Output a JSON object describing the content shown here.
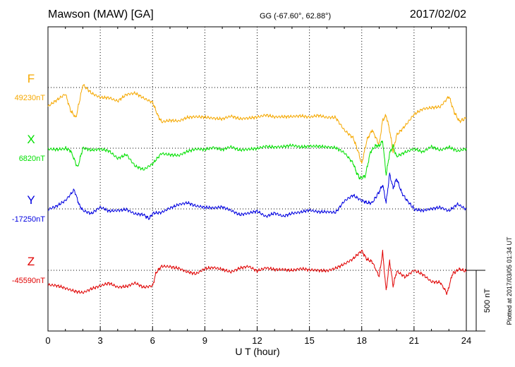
{
  "chart_data": {
    "type": "line",
    "title": "Mawson (MAW)  [GA]",
    "coords": "GG (-67.60°,  62.88°)",
    "date": "2017/02/02",
    "xlabel": "U T (hour)",
    "xlim": [
      0,
      24
    ],
    "xticks": [
      "0",
      "3",
      "6",
      "9",
      "12",
      "15",
      "18",
      "21",
      "24"
    ],
    "grid": true,
    "scale_bar_label": "500 nT",
    "plotted_note": "Plotted at 2017/03/05 01:34 UT",
    "series": [
      {
        "name": "F",
        "baseline_label": "49230nT",
        "color": "#f5a800",
        "points": [
          [
            0,
            49075
          ],
          [
            0.5,
            49130
          ],
          [
            1,
            49180
          ],
          [
            1.3,
            49040
          ],
          [
            1.6,
            48980
          ],
          [
            2,
            49250
          ],
          [
            2.5,
            49180
          ],
          [
            3,
            49150
          ],
          [
            3.5,
            49150
          ],
          [
            4,
            49120
          ],
          [
            4.5,
            49170
          ],
          [
            5,
            49180
          ],
          [
            5.5,
            49140
          ],
          [
            6,
            49110
          ],
          [
            6.3,
            49000
          ],
          [
            6.5,
            48950
          ],
          [
            7,
            48960
          ],
          [
            7.5,
            48950
          ],
          [
            8,
            48980
          ],
          [
            8.5,
            48990
          ],
          [
            9,
            48990
          ],
          [
            9.5,
            48980
          ],
          [
            10,
            48970
          ],
          [
            10.5,
            48990
          ],
          [
            11,
            48970
          ],
          [
            11.5,
            48980
          ],
          [
            12,
            48990
          ],
          [
            12.5,
            49005
          ],
          [
            13,
            48985
          ],
          [
            13.5,
            48985
          ],
          [
            14,
            48990
          ],
          [
            14.5,
            49000
          ],
          [
            15,
            48990
          ],
          [
            15.5,
            49000
          ],
          [
            16,
            48980
          ],
          [
            16.5,
            48980
          ],
          [
            17,
            48880
          ],
          [
            17.5,
            48820
          ],
          [
            17.8,
            48700
          ],
          [
            18,
            48600
          ],
          [
            18.3,
            48800
          ],
          [
            18.6,
            48880
          ],
          [
            19,
            48760
          ],
          [
            19.2,
            48960
          ],
          [
            19.4,
            49000
          ],
          [
            19.6,
            48880
          ],
          [
            19.8,
            48700
          ],
          [
            20,
            48840
          ],
          [
            20.5,
            48920
          ],
          [
            21,
            49010
          ],
          [
            21.5,
            49050
          ],
          [
            22,
            49060
          ],
          [
            22.5,
            49070
          ],
          [
            23,
            49160
          ],
          [
            23.3,
            49030
          ],
          [
            23.6,
            48950
          ],
          [
            24,
            48980
          ]
        ]
      },
      {
        "name": "X",
        "baseline_label": "6820nT",
        "color": "#00e000",
        "points": [
          [
            0,
            6810
          ],
          [
            0.5,
            6810
          ],
          [
            1,
            6820
          ],
          [
            1.3,
            6800
          ],
          [
            1.7,
            6660
          ],
          [
            2,
            6820
          ],
          [
            2.5,
            6800
          ],
          [
            3,
            6810
          ],
          [
            3.5,
            6800
          ],
          [
            4,
            6740
          ],
          [
            4.5,
            6770
          ],
          [
            5,
            6670
          ],
          [
            5.5,
            6640
          ],
          [
            6,
            6690
          ],
          [
            6.5,
            6780
          ],
          [
            7,
            6770
          ],
          [
            7.5,
            6760
          ],
          [
            8,
            6790
          ],
          [
            8.5,
            6810
          ],
          [
            9,
            6810
          ],
          [
            9.5,
            6830
          ],
          [
            10,
            6810
          ],
          [
            10.5,
            6830
          ],
          [
            11,
            6800
          ],
          [
            11.5,
            6810
          ],
          [
            12,
            6820
          ],
          [
            12.5,
            6840
          ],
          [
            13,
            6830
          ],
          [
            13.5,
            6830
          ],
          [
            14,
            6840
          ],
          [
            14.5,
            6830
          ],
          [
            15,
            6840
          ],
          [
            15.5,
            6840
          ],
          [
            16,
            6830
          ],
          [
            16.5,
            6820
          ],
          [
            17,
            6780
          ],
          [
            17.5,
            6700
          ],
          [
            17.7,
            6620
          ],
          [
            17.9,
            6570
          ],
          [
            18.2,
            6590
          ],
          [
            18.5,
            6790
          ],
          [
            18.8,
            6840
          ],
          [
            19,
            6840
          ],
          [
            19.2,
            6880
          ],
          [
            19.4,
            6600
          ],
          [
            19.6,
            6780
          ],
          [
            19.8,
            6840
          ],
          [
            20,
            6750
          ],
          [
            20.5,
            6790
          ],
          [
            21,
            6820
          ],
          [
            21.5,
            6790
          ],
          [
            22,
            6830
          ],
          [
            22.5,
            6800
          ],
          [
            23,
            6830
          ],
          [
            23.5,
            6800
          ],
          [
            24,
            6820
          ]
        ]
      },
      {
        "name": "Y",
        "baseline_label": "-17250nT",
        "color": "#0000e0",
        "points": [
          [
            0,
            -17260
          ],
          [
            0.5,
            -17230
          ],
          [
            1,
            -17180
          ],
          [
            1.5,
            -17090
          ],
          [
            1.8,
            -17220
          ],
          [
            2,
            -17260
          ],
          [
            2.5,
            -17290
          ],
          [
            3,
            -17240
          ],
          [
            3.5,
            -17270
          ],
          [
            4,
            -17260
          ],
          [
            4.5,
            -17250
          ],
          [
            5,
            -17290
          ],
          [
            5.5,
            -17300
          ],
          [
            5.8,
            -17330
          ],
          [
            6,
            -17290
          ],
          [
            6.5,
            -17280
          ],
          [
            7,
            -17240
          ],
          [
            7.5,
            -17210
          ],
          [
            8,
            -17200
          ],
          [
            8.5,
            -17230
          ],
          [
            9,
            -17240
          ],
          [
            9.5,
            -17240
          ],
          [
            10,
            -17230
          ],
          [
            10.5,
            -17260
          ],
          [
            11,
            -17300
          ],
          [
            11.5,
            -17290
          ],
          [
            12,
            -17270
          ],
          [
            12.5,
            -17310
          ],
          [
            13,
            -17280
          ],
          [
            13.5,
            -17310
          ],
          [
            14,
            -17290
          ],
          [
            14.5,
            -17280
          ],
          [
            15,
            -17260
          ],
          [
            15.5,
            -17270
          ],
          [
            16,
            -17270
          ],
          [
            16.5,
            -17280
          ],
          [
            17,
            -17190
          ],
          [
            17.5,
            -17140
          ],
          [
            18,
            -17180
          ],
          [
            18.3,
            -17200
          ],
          [
            18.6,
            -17200
          ],
          [
            19,
            -17110
          ],
          [
            19.2,
            -17050
          ],
          [
            19.4,
            -17200
          ],
          [
            19.6,
            -16960
          ],
          [
            19.8,
            -17080
          ],
          [
            20,
            -17000
          ],
          [
            20.3,
            -17120
          ],
          [
            20.6,
            -17180
          ],
          [
            21,
            -17250
          ],
          [
            21.5,
            -17260
          ],
          [
            22,
            -17250
          ],
          [
            22.5,
            -17240
          ],
          [
            23,
            -17270
          ],
          [
            23.5,
            -17210
          ],
          [
            24,
            -17250
          ]
        ]
      },
      {
        "name": "Z",
        "baseline_label": "-45590nT",
        "color": "#e00000",
        "points": [
          [
            0,
            -45710
          ],
          [
            0.5,
            -45720
          ],
          [
            1,
            -45740
          ],
          [
            1.5,
            -45760
          ],
          [
            2,
            -45770
          ],
          [
            2.5,
            -45740
          ],
          [
            3,
            -45720
          ],
          [
            3.5,
            -45700
          ],
          [
            4,
            -45730
          ],
          [
            4.5,
            -45720
          ],
          [
            5,
            -45690
          ],
          [
            5.5,
            -45730
          ],
          [
            6,
            -45720
          ],
          [
            6.2,
            -45610
          ],
          [
            6.5,
            -45560
          ],
          [
            7,
            -45560
          ],
          [
            7.5,
            -45570
          ],
          [
            8,
            -45600
          ],
          [
            8.5,
            -45620
          ],
          [
            9,
            -45580
          ],
          [
            9.5,
            -45570
          ],
          [
            10,
            -45580
          ],
          [
            10.5,
            -45600
          ],
          [
            11,
            -45570
          ],
          [
            11.5,
            -45560
          ],
          [
            12,
            -45600
          ],
          [
            12.5,
            -45570
          ],
          [
            13,
            -45580
          ],
          [
            13.5,
            -45580
          ],
          [
            14,
            -45590
          ],
          [
            14.5,
            -45580
          ],
          [
            15,
            -45590
          ],
          [
            15.5,
            -45590
          ],
          [
            16,
            -45590
          ],
          [
            16.5,
            -45570
          ],
          [
            17,
            -45540
          ],
          [
            17.5,
            -45500
          ],
          [
            18,
            -45430
          ],
          [
            18.3,
            -45500
          ],
          [
            18.6,
            -45520
          ],
          [
            19,
            -45640
          ],
          [
            19.2,
            -45440
          ],
          [
            19.4,
            -45760
          ],
          [
            19.6,
            -45510
          ],
          [
            19.8,
            -45720
          ],
          [
            20,
            -45600
          ],
          [
            20.5,
            -45650
          ],
          [
            21,
            -45590
          ],
          [
            21.5,
            -45620
          ],
          [
            22,
            -45680
          ],
          [
            22.5,
            -45690
          ],
          [
            22.9,
            -45780
          ],
          [
            23.2,
            -45620
          ],
          [
            23.6,
            -45580
          ],
          [
            24,
            -45600
          ]
        ]
      }
    ]
  }
}
